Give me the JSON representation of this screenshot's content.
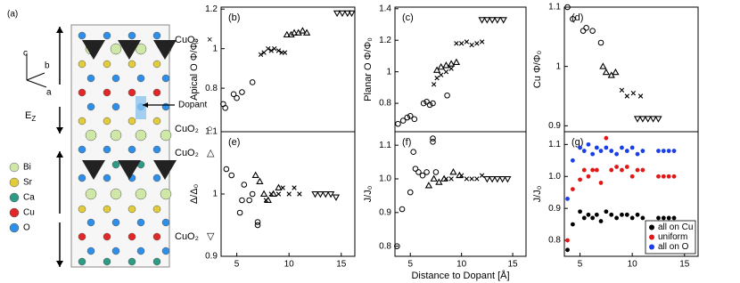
{
  "diagram": {
    "label": "(a)",
    "dopant": "Dopant",
    "field": "E",
    "field_sub": "Z",
    "axes": [
      "c",
      "b",
      "a"
    ],
    "layers": [
      {
        "label": "CuO₂",
        "symbol": "×"
      },
      {
        "label": "CuO₂",
        "symbol": "○"
      },
      {
        "label": "CuO₂",
        "symbol": "△"
      },
      {
        "label": "CuO₂",
        "symbol": "▽"
      }
    ],
    "legend": [
      {
        "name": "Bi",
        "color": "#cfe8a8"
      },
      {
        "name": "Sr",
        "color": "#e2cc3c"
      },
      {
        "name": "Ca",
        "color": "#2f9a86"
      },
      {
        "name": "Cu",
        "color": "#e02828"
      },
      {
        "name": "O",
        "color": "#2f8fe8"
      }
    ]
  },
  "chart_data": [
    {
      "type": "scatter",
      "panel_label": "(b)",
      "y_label": "Apical O Φ/Φ₀",
      "xlim": [
        3.5,
        16.3
      ],
      "ylim": [
        0.58,
        1.21
      ],
      "yticks": [
        0.8,
        1,
        1.2
      ],
      "series": [
        {
          "marker": "circle",
          "color": "#000000",
          "x": [
            3.7,
            3.9,
            4.7,
            5.0,
            5.5,
            6.5
          ],
          "values": [
            0.72,
            0.7,
            0.77,
            0.75,
            0.78,
            0.83
          ]
        },
        {
          "marker": "x",
          "color": "#000000",
          "x": [
            7.3,
            7.6,
            8.0,
            8.3,
            8.6,
            9.0,
            9.3,
            9.6
          ],
          "values": [
            0.97,
            0.98,
            1.0,
            0.99,
            1.0,
            0.99,
            0.98,
            0.98
          ]
        },
        {
          "marker": "triangle-up",
          "color": "#000000",
          "x": [
            9.8,
            10.2,
            10.5,
            10.9,
            11.3,
            11.7
          ],
          "values": [
            1.07,
            1.07,
            1.08,
            1.08,
            1.09,
            1.08
          ]
        },
        {
          "marker": "triangle-down",
          "color": "#000000",
          "x": [
            14.6,
            15.1,
            15.6,
            16.0
          ],
          "values": [
            1.18,
            1.18,
            1.18,
            1.18
          ]
        }
      ]
    },
    {
      "type": "scatter",
      "panel_label": "(c)",
      "y_label": "Planar O Φ/Φ₀",
      "xlim": [
        3.5,
        16.3
      ],
      "ylim": [
        0.62,
        1.41
      ],
      "yticks": [
        0.8,
        1,
        1.2,
        1.4
      ],
      "series": [
        {
          "marker": "circle",
          "color": "#000000",
          "x": [
            3.8,
            4.3,
            4.7,
            5.0,
            5.4,
            6.3,
            6.6,
            6.9,
            7.2,
            8.6
          ],
          "values": [
            0.67,
            0.69,
            0.71,
            0.72,
            0.7,
            0.8,
            0.81,
            0.79,
            0.8,
            0.85
          ]
        },
        {
          "marker": "x",
          "color": "#000000",
          "x": [
            7.3,
            7.6,
            8.0,
            8.5,
            9.0,
            9.5,
            10.0,
            10.5,
            11.0,
            11.5,
            12.0
          ],
          "values": [
            0.92,
            0.96,
            0.98,
            1.0,
            1.02,
            1.18,
            1.18,
            1.19,
            1.17,
            1.18,
            1.19
          ]
        },
        {
          "marker": "triangle-up",
          "color": "#000000",
          "x": [
            7.6,
            8.0,
            8.5,
            9.0,
            9.5
          ],
          "values": [
            1.01,
            1.03,
            1.04,
            1.05,
            1.06
          ]
        },
        {
          "marker": "triangle-down",
          "color": "#000000",
          "x": [
            12.0,
            12.5,
            13.0,
            13.5,
            14.1
          ],
          "values": [
            1.33,
            1.33,
            1.33,
            1.33,
            1.33
          ]
        }
      ]
    },
    {
      "type": "scatter",
      "panel_label": "(d)",
      "y_label": "Cu Φ/Φ₀",
      "xlim": [
        3.5,
        16.3
      ],
      "ylim": [
        0.89,
        1.1
      ],
      "yticks": [
        0.9,
        1,
        1.1
      ],
      "series": [
        {
          "marker": "circle",
          "color": "#000000",
          "x": [
            3.8,
            4.3,
            5.3,
            5.6,
            6.2,
            7.0
          ],
          "values": [
            1.1,
            1.08,
            1.06,
            1.065,
            1.06,
            1.04
          ]
        },
        {
          "marker": "triangle-up",
          "color": "#000000",
          "x": [
            7.2,
            7.5,
            8.0,
            8.4
          ],
          "values": [
            1.0,
            0.99,
            0.985,
            0.99
          ]
        },
        {
          "marker": "x",
          "color": "#000000",
          "x": [
            9.0,
            9.5,
            10.1,
            10.8
          ],
          "values": [
            0.96,
            0.95,
            0.955,
            0.95
          ]
        },
        {
          "marker": "triangle-down",
          "color": "#000000",
          "x": [
            10.5,
            11.0,
            11.5,
            12.0,
            12.5
          ],
          "values": [
            0.912,
            0.912,
            0.912,
            0.912,
            0.912
          ]
        }
      ]
    },
    {
      "type": "scatter",
      "panel_label": "(e)",
      "y_label": "Δ/Δ₀",
      "xlim": [
        3.5,
        16.3
      ],
      "ylim": [
        0.9,
        1.1
      ],
      "yticks": [
        0.9,
        1,
        1.1
      ],
      "xticks": [
        5,
        10,
        15
      ],
      "series": [
        {
          "marker": "circle",
          "color": "#000000",
          "x": [
            4.0,
            4.5,
            5.3,
            5.5,
            5.7,
            6.2,
            6.5,
            7.0,
            7.0
          ],
          "values": [
            1.04,
            1.03,
            0.97,
            0.99,
            1.015,
            0.99,
            1.0,
            0.955,
            0.95
          ]
        },
        {
          "marker": "x",
          "color": "#000000",
          "x": [
            7.8,
            8.3,
            9.0,
            9.4,
            10.0,
            10.5,
            11.0
          ],
          "values": [
            0.99,
            1.0,
            1.0,
            1.01,
            1.0,
            1.01,
            1.0
          ]
        },
        {
          "marker": "triangle-up",
          "color": "#000000",
          "x": [
            6.8,
            7.2,
            7.6,
            8.0,
            8.5,
            9.0
          ],
          "values": [
            1.03,
            1.02,
            1.0,
            0.99,
            1.0,
            1.01
          ]
        },
        {
          "marker": "triangle-down",
          "color": "#000000",
          "x": [
            12.5,
            13.0,
            13.5,
            14.0,
            14.5
          ],
          "values": [
            1.0,
            1.0,
            1.0,
            1.0,
            0.995
          ]
        }
      ]
    },
    {
      "type": "scatter",
      "panel_label": "(f)",
      "y_label": "J/J₀",
      "x_label": "Distance to Dopant [Å]",
      "xlim": [
        3.5,
        16.3
      ],
      "ylim": [
        0.77,
        1.14
      ],
      "yticks": [
        0.8,
        0.9,
        {
          "value": 1,
          "label": "1.0"
        },
        1.1
      ],
      "xticks": [
        5,
        10,
        15
      ],
      "series": [
        {
          "marker": "circle",
          "color": "#000000",
          "x": [
            3.7,
            4.2,
            5.0,
            5.3,
            5.5,
            5.8,
            6.2,
            6.6,
            7.2,
            7.2,
            7.5
          ],
          "values": [
            0.8,
            0.91,
            0.96,
            1.08,
            1.03,
            1.02,
            1.01,
            1.02,
            1.12,
            1.11,
            1.02
          ]
        },
        {
          "marker": "triangle-up",
          "color": "#000000",
          "x": [
            6.8,
            7.3,
            7.8,
            8.3,
            9.2,
            9.8
          ],
          "values": [
            0.98,
            1.0,
            0.99,
            1.0,
            1.02,
            1.01
          ]
        },
        {
          "marker": "x",
          "color": "#000000",
          "x": [
            8.5,
            9.0,
            10.0,
            10.5,
            11.0,
            11.5,
            12.0
          ],
          "values": [
            1.0,
            1.0,
            1.01,
            1.0,
            1.0,
            1.0,
            1.01
          ]
        },
        {
          "marker": "triangle-down",
          "color": "#000000",
          "x": [
            12.5,
            13.0,
            13.5,
            14.0,
            14.5
          ],
          "values": [
            1.0,
            1.0,
            1.0,
            1.0,
            1.0
          ]
        }
      ]
    },
    {
      "type": "scatter",
      "panel_label": "(g)",
      "y_label": "J/J₀",
      "xlim": [
        3.5,
        16.3
      ],
      "ylim": [
        0.75,
        1.14
      ],
      "yticks": [
        0.8,
        0.9,
        {
          "value": 1,
          "label": "1.0"
        },
        1.1
      ],
      "xticks": [
        5,
        10,
        15
      ],
      "legend": "lower right",
      "series": [
        {
          "name": "all on Cu",
          "marker": "dot",
          "color": "#000000",
          "x": [
            3.8,
            4.3,
            5.0,
            5.4,
            5.8,
            6.2,
            6.6,
            7.0,
            7.5,
            8.0,
            8.5,
            9.0,
            9.5,
            10.0,
            10.5,
            11.0,
            12.5,
            13.0,
            13.5,
            14.0
          ],
          "values": [
            0.77,
            0.85,
            0.89,
            0.87,
            0.88,
            0.87,
            0.88,
            0.86,
            0.89,
            0.88,
            0.87,
            0.88,
            0.88,
            0.87,
            0.88,
            0.87,
            0.87,
            0.87,
            0.87,
            0.87
          ]
        },
        {
          "name": "uniform",
          "marker": "dot",
          "color": "#e01818",
          "x": [
            3.8,
            4.3,
            5.0,
            5.4,
            5.8,
            6.2,
            6.6,
            7.0,
            7.5,
            8.0,
            8.5,
            9.0,
            9.5,
            10.0,
            10.5,
            11.0,
            12.5,
            13.0,
            13.5,
            14.0
          ],
          "values": [
            0.8,
            0.96,
            0.99,
            1.02,
            1.0,
            1.02,
            1.02,
            0.98,
            1.12,
            1.02,
            1.03,
            1.02,
            1.03,
            1.0,
            1.02,
            1.02,
            1.0,
            1.0,
            1.0,
            1.0
          ]
        },
        {
          "name": "all on O",
          "marker": "dot",
          "color": "#1a3ee8",
          "x": [
            3.8,
            4.3,
            5.0,
            5.4,
            5.8,
            6.2,
            6.6,
            7.0,
            7.5,
            8.0,
            8.5,
            9.0,
            9.5,
            10.0,
            10.5,
            11.0,
            12.5,
            13.0,
            13.5,
            14.0
          ],
          "values": [
            0.93,
            1.05,
            1.09,
            1.08,
            1.1,
            1.07,
            1.09,
            1.08,
            1.09,
            1.08,
            1.07,
            1.09,
            1.08,
            1.09,
            1.07,
            1.08,
            1.08,
            1.08,
            1.08,
            1.08
          ]
        }
      ]
    }
  ]
}
